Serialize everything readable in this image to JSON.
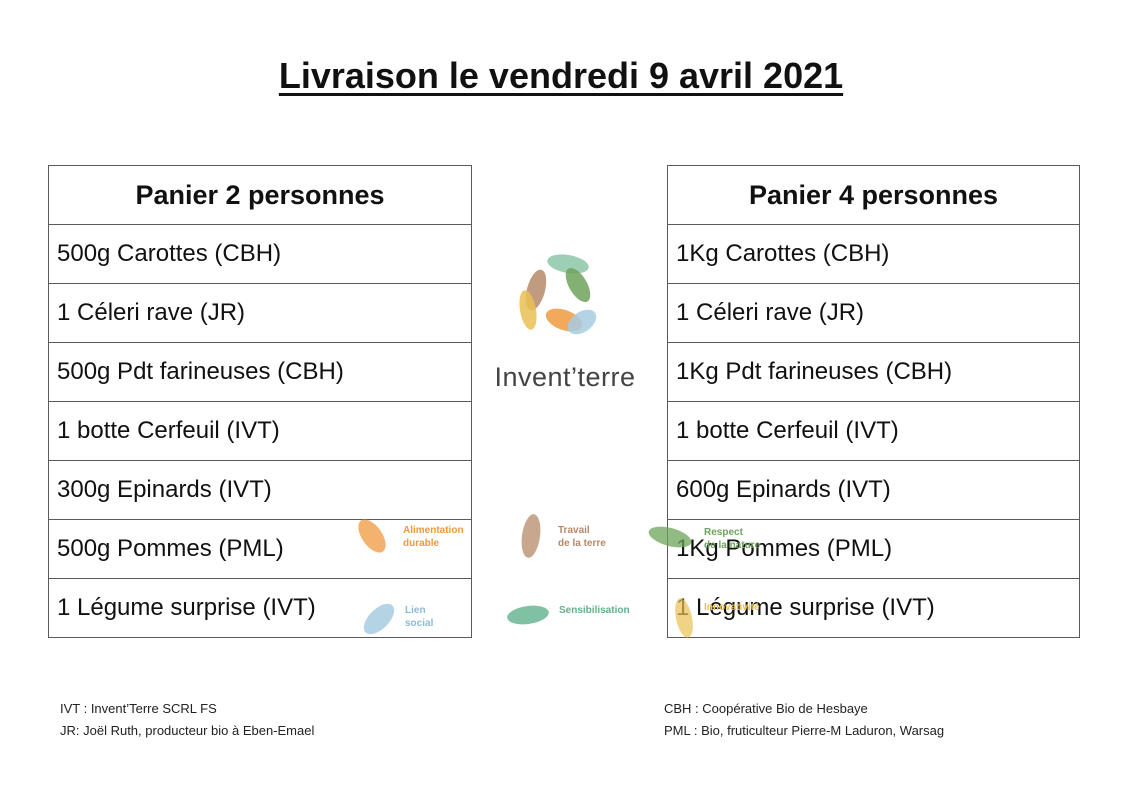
{
  "title": "Livraison le vendredi 9 avril 2021",
  "basket_2": {
    "header": "Panier 2 personnes",
    "items": [
      "500g Carottes (CBH)",
      "1 Céleri rave (JR)",
      "500g Pdt farineuses (CBH)",
      "1 botte Cerfeuil (IVT)",
      "300g Epinards (IVT)",
      "500g Pommes (PML)",
      "1 Légume surprise (IVT)"
    ]
  },
  "basket_4": {
    "header": "Panier 4 personnes",
    "items": [
      "1Kg Carottes (CBH)",
      "1 Céleri rave (JR)",
      "1Kg Pdt farineuses (CBH)",
      "1 botte Cerfeuil (IVT)",
      "600g Epinards (IVT)",
      "1Kg Pommes (PML)",
      "1 Légume surprise (IVT)"
    ]
  },
  "brand": {
    "name": "Invent’terre",
    "icon": "leaf-ring-logo-icon"
  },
  "values": {
    "alimentation": [
      "Alimentation",
      "durable"
    ],
    "travail": [
      "Travail",
      "de la terre"
    ],
    "respect": [
      "Respect",
      "de la nature"
    ],
    "lien": [
      "Lien",
      "social"
    ],
    "sensibilisation": [
      "Sensibilisation"
    ],
    "innovativite": [
      "Innovativité"
    ]
  },
  "legend_left": [
    "IVT : Invent’Terre SCRL FS",
    "JR: Joël Ruth, producteur bio à Eben-Emael"
  ],
  "legend_right": [
    "CBH : Coopérative Bio de Hesbaye",
    "PML : Bio, fruticulteur Pierre-M Laduron, Warsag"
  ],
  "colors": {
    "orange": "#ef9a3e",
    "brown": "#b58968",
    "green": "#6ea35a",
    "blue": "#8bbbd4",
    "teal": "#5fb28b",
    "yellow": "#eac054"
  }
}
